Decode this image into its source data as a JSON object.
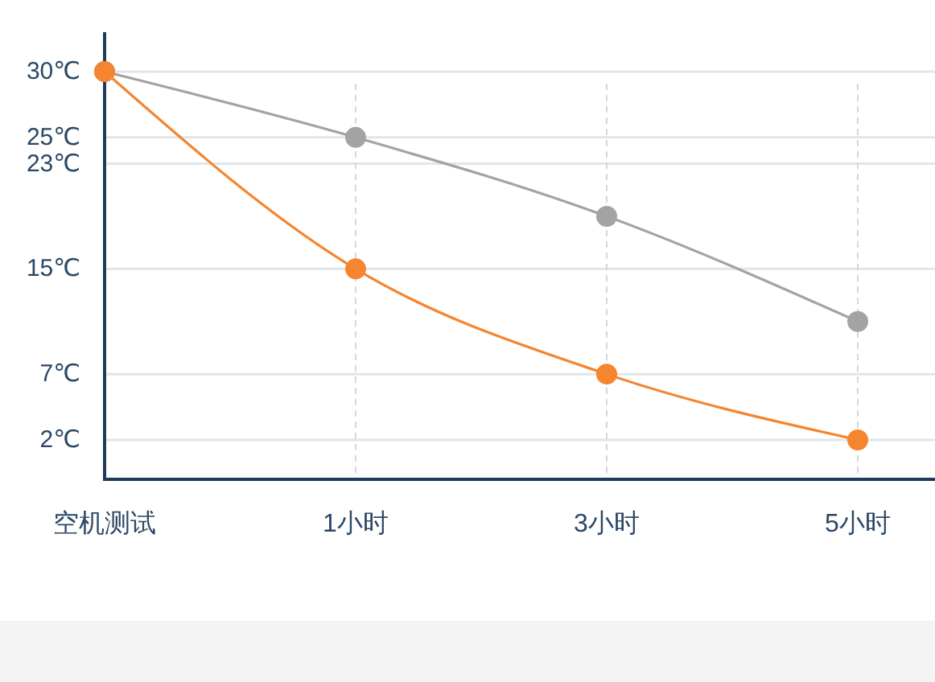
{
  "chart_data": {
    "type": "line",
    "categories": [
      "空机测试",
      "1小时",
      "3小时",
      "5小时"
    ],
    "series": [
      {
        "color": "#a3a3a3",
        "values": [
          30,
          25,
          19,
          11
        ]
      },
      {
        "color": "#f5852f",
        "values": [
          30,
          15,
          7,
          2
        ]
      }
    ],
    "ylim": [
      -1,
      33
    ],
    "yticks": [
      {
        "value": 30,
        "label": "30℃"
      },
      {
        "value": 25,
        "label": "25℃"
      },
      {
        "value": 23,
        "label": "23℃"
      },
      {
        "value": 15,
        "label": "15℃"
      },
      {
        "value": 7,
        "label": "7℃"
      },
      {
        "value": 2,
        "label": "2℃"
      }
    ],
    "grid": true,
    "marker": "circle"
  }
}
